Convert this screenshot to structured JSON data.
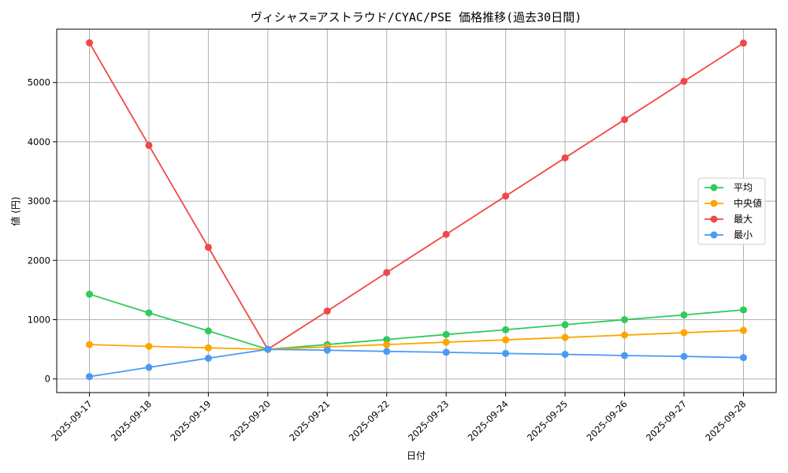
{
  "chart_data": {
    "type": "line",
    "title": "ヴィシャス=アストラウド/CYAC/PSE 価格推移(過去30日間)",
    "xlabel": "日付",
    "ylabel": "値 (円)",
    "ylim": [
      -230,
      5900
    ],
    "yticks": [
      0,
      1000,
      2000,
      3000,
      4000,
      5000
    ],
    "grid": true,
    "legend_position": "center-right",
    "categories": [
      "2025-09-17",
      "2025-09-18",
      "2025-09-19",
      "2025-09-20",
      "2025-09-21",
      "2025-09-22",
      "2025-09-23",
      "2025-09-24",
      "2025-09-25",
      "2025-09-26",
      "2025-09-27",
      "2025-09-28"
    ],
    "series": [
      {
        "name": "平均",
        "color": "#2ecc5a",
        "values": [
          1430,
          1115,
          810,
          500,
          580,
          665,
          750,
          830,
          915,
          1000,
          1080,
          1165
        ]
      },
      {
        "name": "中央値",
        "color": "#ffa500",
        "values": [
          580,
          550,
          525,
          500,
          540,
          580,
          620,
          660,
          700,
          740,
          780,
          820
        ]
      },
      {
        "name": "最大",
        "color": "#f04848",
        "values": [
          5670,
          3940,
          2220,
          500,
          1145,
          1795,
          2440,
          3085,
          3730,
          4375,
          5020,
          5665
        ]
      },
      {
        "name": "最小",
        "color": "#4a9af5",
        "values": [
          40,
          195,
          350,
          500,
          485,
          465,
          450,
          430,
          415,
          395,
          380,
          360
        ]
      }
    ]
  }
}
